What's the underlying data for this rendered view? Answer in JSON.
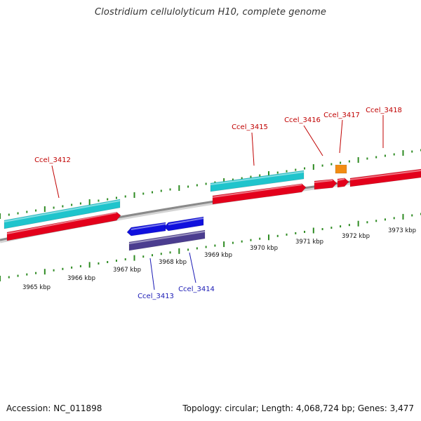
{
  "title": "Clostridium cellulolyticum H10, complete genome",
  "footer": {
    "accession": "Accession: NC_011898",
    "summary": "Topology: circular; Length: 4,068,724 bp; Genes: 3,477"
  },
  "colors": {
    "backbone": "#8a8a8a",
    "tick": "#2e8b22",
    "forward_gene": "#e3001b",
    "forward_feature": "#1fc4cc",
    "reverse_gene": "#1010dd",
    "reverse_feature": "#4b3d8f",
    "other_feature": "#f28c13",
    "forward_label": "#c00000",
    "reverse_label": "#1a1ab5",
    "kbp_label": "#111111"
  },
  "kbp_labels": [
    "3965 kbp",
    "3966 kbp",
    "3967 kbp",
    "3968 kbp",
    "3969 kbp",
    "3970 kbp",
    "3971 kbp",
    "3972 kbp",
    "3973 kbp"
  ],
  "genes": [
    {
      "id": "Ccel_3412",
      "strand": "+"
    },
    {
      "id": "Ccel_3413",
      "strand": "-"
    },
    {
      "id": "Ccel_3414",
      "strand": "-"
    },
    {
      "id": "Ccel_3415",
      "strand": "+"
    },
    {
      "id": "Ccel_3416",
      "strand": "+"
    },
    {
      "id": "Ccel_3417",
      "strand": "+"
    },
    {
      "id": "Ccel_3418",
      "strand": "+"
    }
  ]
}
